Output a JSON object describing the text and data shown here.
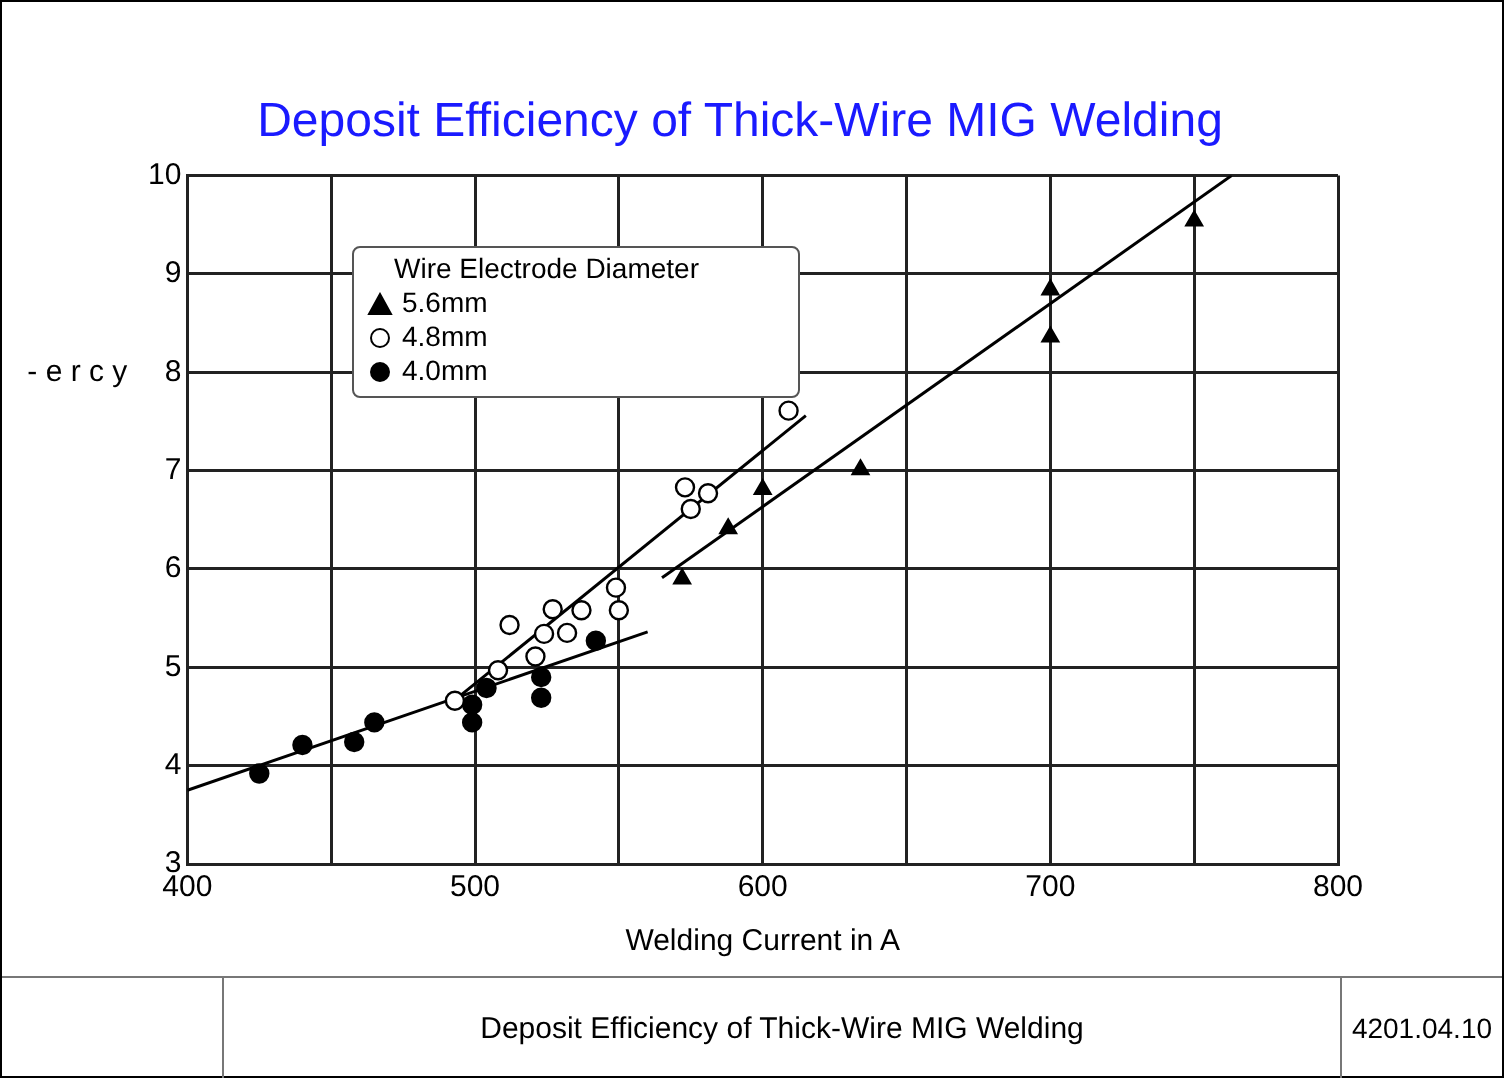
{
  "chart_data": {
    "type": "scatter",
    "title": "Deposit Efficiency of Thick-Wire MIG Welding",
    "xlabel": "Welding Current in A",
    "ylabel": "- e r c y",
    "legend_title": "Wire Electrode Diameter",
    "legend": "top left",
    "grid": true,
    "xlim": [
      400,
      800
    ],
    "xticks": [
      400,
      {
        "value": 450,
        "label": null
      },
      500,
      {
        "value": 550,
        "label": null
      },
      600,
      {
        "value": 650,
        "label": null
      },
      700,
      {
        "value": 750,
        "label": null
      },
      800
    ],
    "ylim": [
      3,
      10
    ],
    "yticks": [
      3,
      4,
      5,
      6,
      7,
      8,
      9,
      10
    ],
    "series": [
      {
        "name": "5.6mm",
        "type": "scatter",
        "marker": "triangle",
        "color": "#000000",
        "x": [
          572,
          588,
          600,
          634,
          700,
          700,
          750
        ],
        "values": [
          5.9,
          6.41,
          6.81,
          7.01,
          8.84,
          8.36,
          9.54
        ]
      },
      {
        "name": "4.8mm",
        "type": "scatter",
        "marker": "circle",
        "color": "#ffffff",
        "x": [
          493,
          508,
          512,
          521,
          524,
          527,
          532,
          537,
          549,
          550,
          573,
          575,
          581,
          609
        ],
        "values": [
          4.66,
          4.97,
          5.43,
          5.11,
          5.34,
          5.59,
          5.35,
          5.58,
          5.81,
          5.58,
          6.83,
          6.61,
          6.77,
          7.61
        ]
      },
      {
        "name": "4.0mm",
        "type": "scatter",
        "marker": "circle",
        "color": "#000000",
        "x": [
          425,
          440,
          458,
          465,
          499,
          499,
          504,
          523,
          523,
          542
        ],
        "values": [
          3.92,
          4.21,
          4.24,
          4.44,
          4.62,
          4.44,
          4.79,
          4.9,
          4.69,
          5.27
        ]
      },
      {
        "type": "line",
        "marker": "none",
        "color": "#000000",
        "x": [
          400,
          560
        ],
        "values": [
          3.75,
          5.36
        ]
      },
      {
        "type": "line",
        "marker": "none",
        "color": "#000000",
        "x": [
          491,
          615
        ],
        "values": [
          4.62,
          7.56
        ]
      },
      {
        "type": "line",
        "marker": "none",
        "color": "#000000",
        "x": [
          565,
          763
        ],
        "values": [
          5.91,
          10.0
        ]
      }
    ],
    "annotations": [
      "Deposit Efficiency of Thick-Wire MIG Welding",
      "4201.04.10"
    ]
  }
}
